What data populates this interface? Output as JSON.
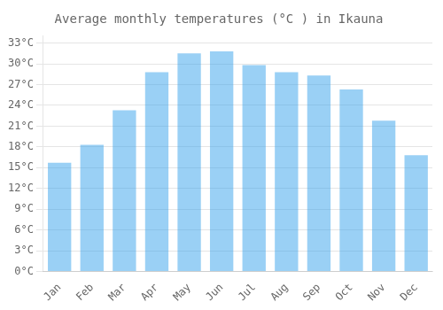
{
  "chart_data": {
    "type": "bar",
    "title": "Average monthly temperatures (°C ) in Ikauna",
    "categories": [
      "Jan",
      "Feb",
      "Mar",
      "Apr",
      "May",
      "Jun",
      "Jul",
      "Aug",
      "Sep",
      "Oct",
      "Nov",
      "Dec"
    ],
    "values": [
      15.7,
      18.3,
      23.3,
      28.8,
      31.5,
      31.8,
      29.8,
      28.8,
      28.3,
      26.3,
      21.8,
      16.8
    ],
    "ylim": [
      0,
      34
    ],
    "yticks": [
      {
        "value": 0,
        "label": "0°C"
      },
      {
        "value": 3,
        "label": "3°C"
      },
      {
        "value": 6,
        "label": "6°C"
      },
      {
        "value": 9,
        "label": "9°C"
      },
      {
        "value": 12,
        "label": "12°C"
      },
      {
        "value": 15,
        "label": "15°C"
      },
      {
        "value": 18,
        "label": "18°C"
      },
      {
        "value": 21,
        "label": "21°C"
      },
      {
        "value": 24,
        "label": "24°C"
      },
      {
        "value": 27,
        "label": "27°C"
      },
      {
        "value": 30,
        "label": "30°C"
      },
      {
        "value": 33,
        "label": "33°C"
      }
    ],
    "grid": true
  }
}
